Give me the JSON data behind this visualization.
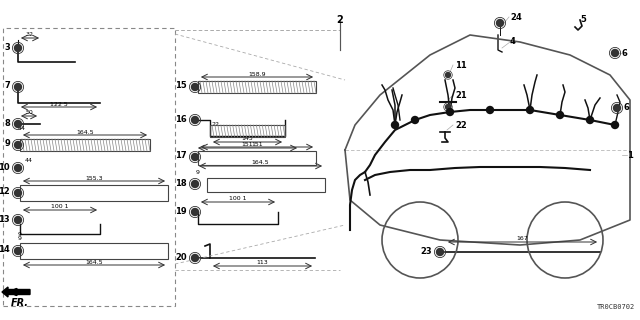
{
  "bg_color": "#ffffff",
  "lc": "#000000",
  "hc": "#111111",
  "gc": "#555555",
  "parts_left": [
    {
      "num": "3",
      "nx": 0.02,
      "ny": 0.87
    },
    {
      "num": "7",
      "nx": 0.02,
      "ny": 0.73
    },
    {
      "num": "8",
      "nx": 0.02,
      "ny": 0.61
    },
    {
      "num": "9",
      "nx": 0.02,
      "ny": 0.54
    },
    {
      "num": "10",
      "nx": 0.02,
      "ny": 0.465
    },
    {
      "num": "12",
      "nx": 0.02,
      "ny": 0.39
    },
    {
      "num": "13",
      "nx": 0.02,
      "ny": 0.31
    },
    {
      "num": "14",
      "nx": 0.02,
      "ny": 0.215
    }
  ],
  "parts_mid": [
    {
      "num": "15",
      "nx": 0.185,
      "ny": 0.73
    },
    {
      "num": "16",
      "nx": 0.185,
      "ny": 0.62
    },
    {
      "num": "17",
      "nx": 0.185,
      "ny": 0.505
    },
    {
      "num": "18",
      "nx": 0.185,
      "ny": 0.425
    },
    {
      "num": "19",
      "nx": 0.185,
      "ny": 0.335
    },
    {
      "num": "20",
      "nx": 0.185,
      "ny": 0.195
    }
  ],
  "parts_car": [
    {
      "num": "2",
      "nx": 0.34,
      "ny": 0.94
    },
    {
      "num": "24",
      "nx": 0.505,
      "ny": 0.955
    },
    {
      "num": "4",
      "nx": 0.505,
      "ny": 0.87
    },
    {
      "num": "5",
      "nx": 0.85,
      "ny": 0.945
    },
    {
      "num": "6",
      "nx": 0.958,
      "ny": 0.855
    },
    {
      "num": "6",
      "nx": 0.958,
      "ny": 0.7
    },
    {
      "num": "11",
      "nx": 0.452,
      "ny": 0.735
    },
    {
      "num": "21",
      "nx": 0.452,
      "ny": 0.65
    },
    {
      "num": "22",
      "nx": 0.452,
      "ny": 0.565
    },
    {
      "num": "23",
      "nx": 0.43,
      "ny": 0.215
    },
    {
      "num": "1",
      "nx": 0.955,
      "ny": 0.49
    }
  ],
  "dim_23_label": "167",
  "diagram_code": "TR0CB0702"
}
